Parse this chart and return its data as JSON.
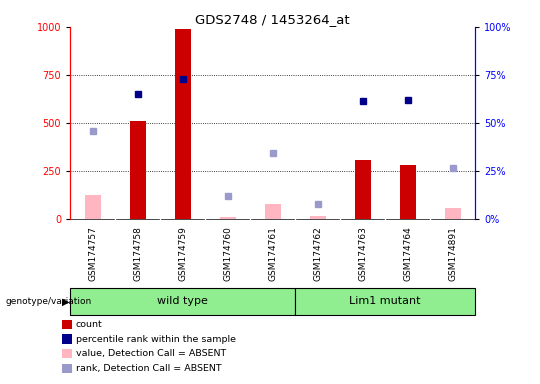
{
  "title": "GDS2748 / 1453264_at",
  "samples": [
    "GSM174757",
    "GSM174758",
    "GSM174759",
    "GSM174760",
    "GSM174761",
    "GSM174762",
    "GSM174763",
    "GSM174764",
    "GSM174891"
  ],
  "count_values": [
    null,
    510,
    990,
    null,
    null,
    null,
    305,
    280,
    null
  ],
  "count_absent": [
    125,
    null,
    null,
    12,
    80,
    15,
    null,
    null,
    55
  ],
  "percentile_rank": [
    null,
    650,
    730,
    null,
    null,
    null,
    615,
    620,
    null
  ],
  "rank_absent": [
    460,
    null,
    null,
    120,
    345,
    80,
    null,
    null,
    265
  ],
  "ylim_left": [
    0,
    1000
  ],
  "ylim_right": [
    0,
    100
  ],
  "yticks_left": [
    0,
    250,
    500,
    750,
    1000
  ],
  "yticks_right": [
    0,
    25,
    50,
    75,
    100
  ],
  "bar_width": 0.35,
  "bar_color_count": "#CC0000",
  "bar_color_absent": "#FFB6C1",
  "dot_color_rank": "#00008B",
  "dot_color_rank_absent": "#9999CC",
  "genotype_label": "genotype/variation",
  "legend_items": [
    {
      "color": "#CC0000",
      "label": "count"
    },
    {
      "color": "#00008B",
      "label": "percentile rank within the sample"
    },
    {
      "color": "#FFB6C1",
      "label": "value, Detection Call = ABSENT"
    },
    {
      "color": "#9999CC",
      "label": "rank, Detection Call = ABSENT"
    }
  ],
  "bg_color": "#FFFFFF",
  "plot_bg_color": "#FFFFFF",
  "tick_area_color": "#D3D3D3",
  "green_color": "#90EE90"
}
